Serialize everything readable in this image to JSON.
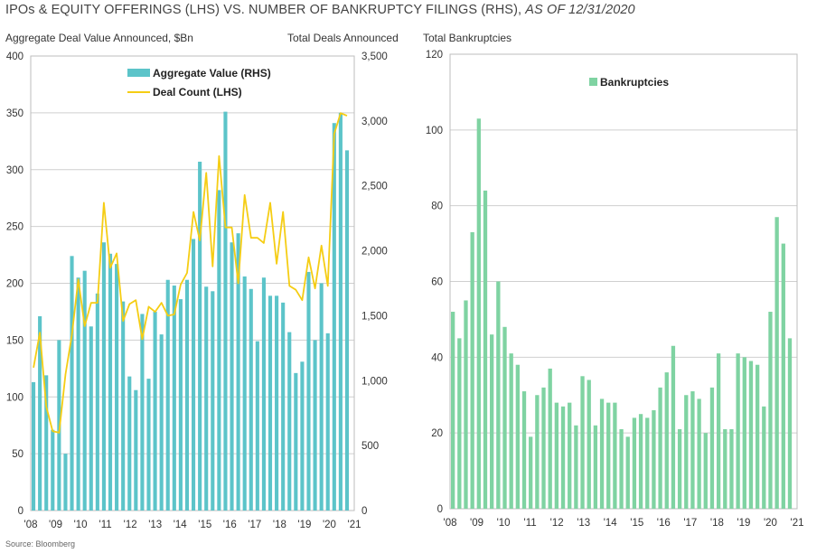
{
  "title_main": "IPOs & EQUITY OFFERINGS (LHS) VS. NUMBER OF BANKRUPTCY FILINGS (RHS),",
  "title_italic": "AS OF 12/31/2020",
  "source": "Source: Bloomberg",
  "colors": {
    "aggregate": "#5cc4c9",
    "deal_count": "#f5cd14",
    "bankruptcies": "#7fd3a2",
    "grid": "#cfcfcf"
  },
  "chart_data": [
    {
      "type": "bar",
      "name": "ipos-equity",
      "ylabel_left": "Aggregate Deal Value Announced, $Bn",
      "ylabel_right": "Total Deals Announced",
      "ylim_left": [
        0,
        400
      ],
      "ylim_right": [
        0,
        3500
      ],
      "yticks_left": [
        "0",
        "50",
        "100",
        "150",
        "200",
        "250",
        "300",
        "350",
        "400"
      ],
      "yticks_right": [
        "0",
        "500",
        "1,000",
        "1,500",
        "2,000",
        "2,500",
        "3,000",
        "3,500"
      ],
      "xticks": [
        "'08",
        "'09",
        "'10",
        "'11",
        "'12",
        "'13",
        "'14",
        "'15",
        "'16",
        "'17",
        "'18",
        "'19",
        "'20",
        "'21"
      ],
      "x_start": 2008,
      "x_end": 2021,
      "legend_position": "top-left",
      "grid": true,
      "series": [
        {
          "name": "Aggregate Value (RHS)",
          "kind": "bar",
          "axis": "left",
          "values": [
            113,
            171,
            119,
            71,
            150,
            50,
            224,
            205,
            211,
            162,
            191,
            236,
            226,
            217,
            184,
            118,
            106,
            173,
            116,
            175,
            155,
            203,
            198,
            186,
            203,
            239,
            307,
            197,
            193,
            282,
            351,
            236,
            244,
            206,
            195,
            149,
            205,
            189,
            189,
            183,
            157,
            121,
            131,
            210,
            150,
            200,
            156,
            341,
            350,
            317
          ]
        },
        {
          "name": "Deal Count (LHS)",
          "kind": "line",
          "axis": "right",
          "values": [
            1100,
            1370,
            800,
            610,
            600,
            1050,
            1350,
            1780,
            1420,
            1600,
            1600,
            2370,
            1870,
            1980,
            1460,
            1590,
            1620,
            1320,
            1570,
            1530,
            1600,
            1500,
            1510,
            1740,
            1830,
            2300,
            2080,
            2600,
            1880,
            2730,
            2180,
            2180,
            1750,
            2430,
            2100,
            2100,
            2060,
            2370,
            1900,
            2300,
            1730,
            1700,
            1620,
            1950,
            1710,
            2040,
            1730,
            2900,
            3060,
            3040
          ]
        }
      ]
    },
    {
      "type": "bar",
      "name": "bankruptcies",
      "ylabel": "Total Bankruptcies",
      "ylim": [
        0,
        120
      ],
      "yticks": [
        "0",
        "20",
        "40",
        "60",
        "80",
        "100",
        "120"
      ],
      "xticks": [
        "'08",
        "'09",
        "'10",
        "'11",
        "'12",
        "'13",
        "'14",
        "'15",
        "'16",
        "'17",
        "'18",
        "'19",
        "'20",
        "'21"
      ],
      "x_start": 2008,
      "x_end": 2021,
      "legend_position": "top-right",
      "grid": true,
      "series": [
        {
          "name": "Bankruptcies",
          "values": [
            52,
            45,
            55,
            73,
            103,
            84,
            46,
            60,
            48,
            41,
            38,
            31,
            19,
            30,
            32,
            37,
            28,
            27,
            28,
            22,
            35,
            34,
            22,
            29,
            28,
            28,
            21,
            19,
            24,
            25,
            24,
            26,
            32,
            36,
            43,
            21,
            30,
            31,
            29,
            20,
            32,
            41,
            21,
            21,
            41,
            40,
            39,
            38,
            27,
            52,
            77,
            70,
            45
          ]
        }
      ]
    }
  ]
}
